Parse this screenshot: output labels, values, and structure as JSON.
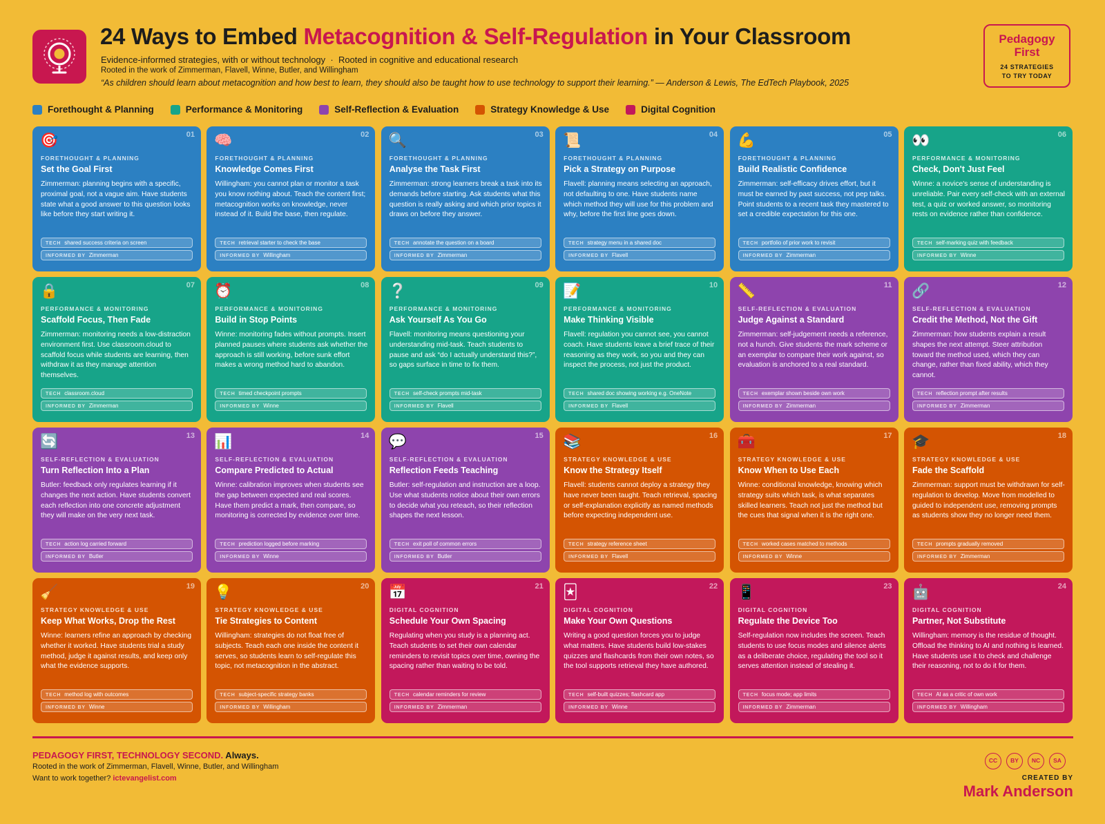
{
  "header": {
    "title_parts": [
      "24 Ways to Embed ",
      "Metacognition & Self-Regulation",
      " in Your Classroom"
    ],
    "subtitle": "Evidence-informed strategies, with or without technology  ·  Rooted in cognitive and educational research",
    "roots": "Rooted in the work of Zimmerman, Flavell, Winne, Butler, and Willingham",
    "quote": "“As children should learn about metacognition and how best to learn, they should also be taught how to use technology to support their learning.” — Anderson & Lewis, The EdTech Playbook, 2025"
  },
  "badge": {
    "title": "Pedagogy First",
    "subtitle": "24 STRATEGIES TO TRY TODAY"
  },
  "legend": [
    {
      "name": "Forethought & Planning",
      "color": "#2c80c2"
    },
    {
      "name": "Performance & Monitoring",
      "color": "#17a489"
    },
    {
      "name": "Self-Reflection & Evaluation",
      "color": "#8e44ad"
    },
    {
      "name": "Strategy Knowledge & Use",
      "color": "#d45402"
    },
    {
      "name": "Digital Cognition",
      "color": "#c2185b"
    }
  ],
  "pill_labels": {
    "tech": "TECH",
    "informed": "INFORMED BY"
  },
  "cards": [
    {
      "number": "01",
      "icon": "🎯",
      "category": "FORETHOUGHT & PLANNING",
      "title": "Set the Goal First",
      "body": "Zimmerman: planning begins with a specific, proximal goal, not a vague aim. Have students state what a good answer to this question looks like before they start writing it.",
      "tech": "shared success criteria on screen",
      "informed": "Zimmerman"
    },
    {
      "number": "02",
      "icon": "🧠",
      "category": "FORETHOUGHT & PLANNING",
      "title": "Knowledge Comes First",
      "body": "Willingham: you cannot plan or monitor a task you know nothing about. Teach the content first; metacognition works on knowledge, never instead of it. Build the base, then regulate.",
      "tech": "retrieval starter to check the base",
      "informed": "Willingham"
    },
    {
      "number": "03",
      "icon": "🔍",
      "category": "FORETHOUGHT & PLANNING",
      "title": "Analyse the Task First",
      "body": "Zimmerman: strong learners break a task into its demands before starting. Ask students what this question is really asking and which prior topics it draws on before they answer.",
      "tech": "annotate the question on a board",
      "informed": "Zimmerman"
    },
    {
      "number": "04",
      "icon": "📜",
      "category": "FORETHOUGHT & PLANNING",
      "title": "Pick a Strategy on Purpose",
      "body": "Flavell: planning means selecting an approach, not defaulting to one. Have students name which method they will use for this problem and why, before the first line goes down.",
      "tech": "strategy menu in a shared doc",
      "informed": "Flavell"
    },
    {
      "number": "05",
      "icon": "💪",
      "category": "FORETHOUGHT & PLANNING",
      "title": "Build Realistic Confidence",
      "body": "Zimmerman: self-efficacy drives effort, but it must be earned by past success, not pep talks. Point students to a recent task they mastered to set a credible expectation for this one.",
      "tech": "portfolio of prior work to revisit",
      "informed": "Zimmerman"
    },
    {
      "number": "06",
      "icon": "👀",
      "category": "PERFORMANCE & MONITORING",
      "title": "Check, Don't Just Feel",
      "body": "Winne: a novice's sense of understanding is unreliable. Pair every self-check with an external test, a quiz or worked answer, so monitoring rests on evidence rather than confidence.",
      "tech": "self-marking quiz with feedback",
      "informed": "Winne"
    },
    {
      "number": "07",
      "icon": "🔒",
      "category": "PERFORMANCE & MONITORING",
      "title": "Scaffold Focus, Then Fade",
      "body": "Zimmerman: monitoring needs a low-distraction environment first. Use classroom.cloud to scaffold focus while students are learning, then withdraw it as they manage attention themselves.",
      "tech": "classroom.cloud",
      "informed": "Zimmerman"
    },
    {
      "number": "08",
      "icon": "⏰",
      "category": "PERFORMANCE & MONITORING",
      "title": "Build in Stop Points",
      "body": "Winne: monitoring fades without prompts. Insert planned pauses where students ask whether the approach is still working, before sunk effort makes a wrong method hard to abandon.",
      "tech": "timed checkpoint prompts",
      "informed": "Winne"
    },
    {
      "number": "09",
      "icon": "❔",
      "category": "PERFORMANCE & MONITORING",
      "title": "Ask Yourself As You Go",
      "body": "Flavell: monitoring means questioning your understanding mid-task. Teach students to pause and ask “do I actually understand this?”, so gaps surface in time to fix them.",
      "tech": "self-check prompts mid-task",
      "informed": "Flavell"
    },
    {
      "number": "10",
      "icon": "📝",
      "category": "PERFORMANCE & MONITORING",
      "title": "Make Thinking Visible",
      "body": "Flavell: regulation you cannot see, you cannot coach. Have students leave a brief trace of their reasoning as they work, so you and they can inspect the process, not just the product.",
      "tech": "shared doc showing working e.g. OneNote",
      "informed": "Flavell"
    },
    {
      "number": "11",
      "icon": "📏",
      "category": "SELF-REFLECTION & EVALUATION",
      "title": "Judge Against a Standard",
      "body": "Zimmerman: self-judgement needs a reference, not a hunch. Give students the mark scheme or an exemplar to compare their work against, so evaluation is anchored to a real standard.",
      "tech": "exemplar shown beside own work",
      "informed": "Zimmerman"
    },
    {
      "number": "12",
      "icon": "🔗",
      "category": "SELF-REFLECTION & EVALUATION",
      "title": "Credit the Method, Not the Gift",
      "body": "Zimmerman: how students explain a result shapes the next attempt. Steer attribution toward the method used, which they can change, rather than fixed ability, which they cannot.",
      "tech": "reflection prompt after results",
      "informed": "Zimmerman"
    },
    {
      "number": "13",
      "icon": "🔄",
      "category": "SELF-REFLECTION & EVALUATION",
      "title": "Turn Reflection Into a Plan",
      "body": "Butler: feedback only regulates learning if it changes the next action. Have students convert each reflection into one concrete adjustment they will make on the very next task.",
      "tech": "action log carried forward",
      "informed": "Butler"
    },
    {
      "number": "14",
      "icon": "📊",
      "category": "SELF-REFLECTION & EVALUATION",
      "title": "Compare Predicted to Actual",
      "body": "Winne: calibration improves when students see the gap between expected and real scores. Have them predict a mark, then compare, so monitoring is corrected by evidence over time.",
      "tech": "prediction logged before marking",
      "informed": "Winne"
    },
    {
      "number": "15",
      "icon": "💬",
      "category": "SELF-REFLECTION & EVALUATION",
      "title": "Reflection Feeds Teaching",
      "body": "Butler: self-regulation and instruction are a loop. Use what students notice about their own errors to decide what you reteach, so their reflection shapes the next lesson.",
      "tech": "exit poll of common errors",
      "informed": "Butler"
    },
    {
      "number": "16",
      "icon": "📚",
      "category": "STRATEGY KNOWLEDGE & USE",
      "title": "Know the Strategy Itself",
      "body": "Flavell: students cannot deploy a strategy they have never been taught. Teach retrieval, spacing or self-explanation explicitly as named methods before expecting independent use.",
      "tech": "strategy reference sheet",
      "informed": "Flavell"
    },
    {
      "number": "17",
      "icon": "🧰",
      "category": "STRATEGY KNOWLEDGE & USE",
      "title": "Know When to Use Each",
      "body": "Winne: conditional knowledge, knowing which strategy suits which task, is what separates skilled learners. Teach not just the method but the cues that signal when it is the right one.",
      "tech": "worked cases matched to methods",
      "informed": "Winne"
    },
    {
      "number": "18",
      "icon": "🎓",
      "category": "STRATEGY KNOWLEDGE & USE",
      "title": "Fade the Scaffold",
      "body": "Zimmerman: support must be withdrawn for self-regulation to develop. Move from modelled to guided to independent use, removing prompts as students show they no longer need them.",
      "tech": "prompts gradually removed",
      "informed": "Zimmerman"
    },
    {
      "number": "19",
      "icon": "🧹",
      "category": "STRATEGY KNOWLEDGE & USE",
      "title": "Keep What Works, Drop the Rest",
      "body": "Winne: learners refine an approach by checking whether it worked. Have students trial a study method, judge it against results, and keep only what the evidence supports.",
      "tech": "method log with outcomes",
      "informed": "Winne"
    },
    {
      "number": "20",
      "icon": "💡",
      "category": "STRATEGY KNOWLEDGE & USE",
      "title": "Tie Strategies to Content",
      "body": "Willingham: strategies do not float free of subjects. Teach each one inside the content it serves, so students learn to self-regulate this topic, not metacognition in the abstract.",
      "tech": "subject-specific strategy banks",
      "informed": "Willingham"
    },
    {
      "number": "21",
      "icon": "📅",
      "category": "DIGITAL COGNITION",
      "title": "Schedule Your Own Spacing",
      "body": "Regulating when you study is a planning act. Teach students to set their own calendar reminders to revisit topics over time, owning the spacing rather than waiting to be told.",
      "tech": "calendar reminders for review",
      "informed": "Zimmerman"
    },
    {
      "number": "22",
      "icon": "🃏",
      "category": "DIGITAL COGNITION",
      "title": "Make Your Own Questions",
      "body": "Writing a good question forces you to judge what matters. Have students build low-stakes quizzes and flashcards from their own notes, so the tool supports retrieval they have authored.",
      "tech": "self-built quizzes; flashcard app",
      "informed": "Winne"
    },
    {
      "number": "23",
      "icon": "📱",
      "category": "DIGITAL COGNITION",
      "title": "Regulate the Device Too",
      "body": "Self-regulation now includes the screen. Teach students to use focus modes and silence alerts as a deliberate choice, regulating the tool so it serves attention instead of stealing it.",
      "tech": "focus mode; app limits",
      "informed": "Zimmerman"
    },
    {
      "number": "24",
      "icon": "🤖",
      "category": "DIGITAL COGNITION",
      "title": "Partner, Not Substitute",
      "body": "Willingham: memory is the residue of thought. Offload the thinking to AI and nothing is learned. Have students use it to check and challenge their reasoning, not to do it for them.",
      "tech": "AI as a critic of own work",
      "informed": "Willingham"
    }
  ],
  "footer": {
    "motto": "PEDAGOGY FIRST, TECHNOLOGY SECOND.",
    "motto_end": " Always.",
    "roots": "Rooted in the work of Zimmerman, Flavell, Winne, Butler, and Willingham",
    "contact": "Want to work together? ",
    "link": "ictevangelist.com",
    "licence": [
      "CC",
      "BY",
      "NC",
      "SA"
    ],
    "created_by": "CREATED BY",
    "author": "Mark Anderson"
  }
}
